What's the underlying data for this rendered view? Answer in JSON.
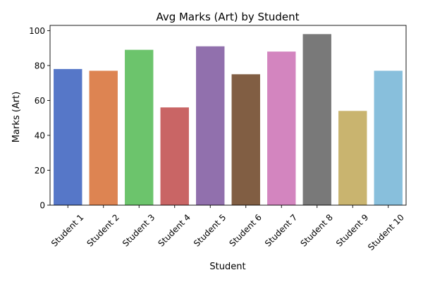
{
  "chart_data": {
    "type": "bar",
    "title": "Avg Marks (Art) by Student",
    "xlabel": "Student",
    "ylabel": "Marks (Art)",
    "categories": [
      "Student 1",
      "Student 2",
      "Student 3",
      "Student 4",
      "Student 5",
      "Student 6",
      "Student 7",
      "Student 8",
      "Student 9",
      "Student 10"
    ],
    "values": [
      78,
      77,
      89,
      56,
      91,
      75,
      88,
      98,
      54,
      77
    ],
    "colors": [
      "#5677c8",
      "#dd8452",
      "#6cc46c",
      "#c96565",
      "#9170ad",
      "#815e43",
      "#d385bf",
      "#797979",
      "#c9b46f",
      "#88bfdc"
    ],
    "ylim": [
      0,
      103
    ],
    "yticks": [
      0,
      20,
      40,
      60,
      80,
      100
    ],
    "grid": false,
    "legend": "none"
  }
}
